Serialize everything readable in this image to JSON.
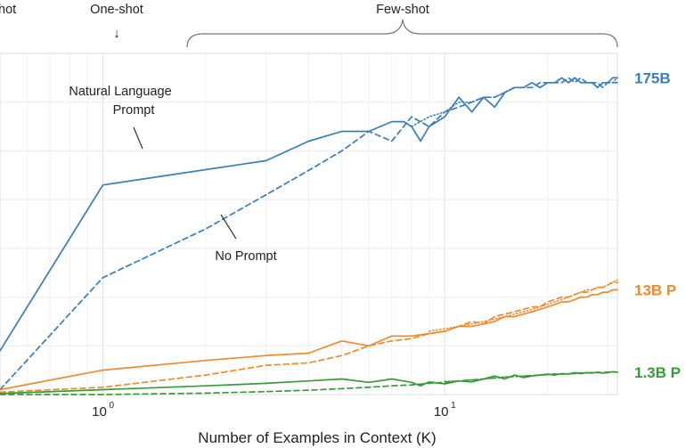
{
  "chart_data": {
    "type": "line",
    "title": "",
    "xlabel": "Number of Examples in Context  (K)",
    "ylabel": "",
    "xscale": "log",
    "xlim": [
      0.5,
      32
    ],
    "ylim": [
      0,
      70
    ],
    "grid": true,
    "regions": [
      {
        "name": "zero-shot",
        "label": "hot"
      },
      {
        "name": "one-shot",
        "label": "One-shot",
        "marker": "↓"
      },
      {
        "name": "few-shot",
        "label": "Few-shot"
      }
    ],
    "x_ticks": [
      {
        "value": 1,
        "base": "10",
        "exp": "0"
      },
      {
        "value": 10,
        "base": "10",
        "exp": "1"
      }
    ],
    "annotations": [
      {
        "name": "natural-language-prompt",
        "lines": [
          "Natural Language",
          "Prompt"
        ]
      },
      {
        "name": "no-prompt",
        "lines": [
          "No Prompt"
        ]
      }
    ],
    "series": [
      {
        "name": "175B Prompt",
        "label": "175B",
        "model": "175B",
        "style": "solid",
        "color": "#3a7db8",
        "x": [
          0.5,
          1,
          3,
          4,
          5,
          6,
          7,
          7.6,
          8,
          8.5,
          9,
          10,
          11,
          12,
          13,
          14,
          15,
          16,
          17,
          18,
          19,
          20,
          21,
          22,
          23,
          24,
          25,
          26,
          27,
          28,
          29,
          30,
          31,
          32
        ],
        "y": [
          9,
          43,
          48,
          52,
          54,
          54,
          56,
          56,
          55,
          52,
          55,
          57,
          61,
          58,
          61,
          59,
          62,
          63,
          63,
          64,
          63,
          64,
          64,
          65,
          64,
          65,
          64,
          64,
          64,
          63,
          64,
          64,
          65,
          65
        ]
      },
      {
        "name": "175B No Prompt",
        "model": "175B",
        "style": "dashed",
        "color": "#3a7db8",
        "x": [
          0.5,
          1,
          2,
          3,
          4,
          5,
          6,
          7,
          8,
          9,
          10,
          11,
          12,
          13,
          14,
          15,
          16,
          17,
          18,
          19,
          20,
          21,
          22,
          23,
          24,
          25,
          26,
          27,
          28,
          29,
          30,
          31,
          32
        ],
        "y": [
          1,
          24,
          34,
          41,
          46,
          50,
          54,
          52,
          57,
          55,
          58,
          59,
          60,
          61,
          61,
          62,
          63,
          63,
          63,
          64,
          64,
          64,
          64,
          65,
          64,
          65,
          64,
          64,
          64,
          63,
          64,
          64,
          64
        ]
      },
      {
        "name": "175B No Prompt (dotted)",
        "model": "175B",
        "style": "dotted",
        "color": "#3a7db8",
        "x": [
          8,
          9,
          10,
          11,
          12,
          13,
          14,
          15,
          16,
          17,
          18,
          19,
          20,
          21,
          22,
          23,
          24,
          25,
          26,
          27,
          28,
          29,
          30,
          31,
          32
        ],
        "y": [
          55,
          57,
          58,
          60,
          60,
          61,
          61,
          62,
          63,
          63,
          64,
          63,
          64,
          64,
          65,
          64,
          65,
          64,
          64,
          64,
          63,
          64,
          64,
          64,
          65
        ]
      },
      {
        "name": "13B Prompt",
        "label": "13B P",
        "model": "13B",
        "style": "solid",
        "color": "#ee8a2e",
        "x": [
          0.5,
          1,
          2,
          3,
          4,
          5,
          6,
          7,
          8,
          9,
          10,
          11,
          12,
          13,
          14,
          15,
          16,
          17,
          18,
          19,
          20,
          21,
          22,
          23,
          24,
          25,
          26,
          27,
          28,
          29,
          30,
          31,
          32
        ],
        "y": [
          1,
          5,
          7,
          8,
          8.5,
          11,
          10,
          12,
          12,
          12.5,
          13,
          14,
          14,
          14.5,
          15,
          16,
          16,
          16.5,
          17,
          17.5,
          18,
          18.5,
          19,
          19,
          19.5,
          20,
          20,
          20.5,
          20.5,
          21,
          21,
          21.5,
          21.5
        ]
      },
      {
        "name": "13B No Prompt",
        "model": "13B",
        "style": "dashed",
        "color": "#ee8a2e",
        "x": [
          0.5,
          1,
          2,
          3,
          4,
          5,
          6,
          7,
          8,
          9,
          10,
          11,
          12,
          13,
          14,
          15,
          16,
          17,
          18,
          19,
          20,
          21,
          22,
          23,
          24,
          25,
          26,
          27,
          28,
          29,
          30,
          31,
          32
        ],
        "y": [
          0.5,
          1.5,
          4,
          6,
          6.5,
          8,
          10,
          11,
          11.5,
          12.5,
          13,
          14,
          15,
          14.5,
          16,
          16.5,
          17,
          17.5,
          18,
          18,
          19,
          19.5,
          20,
          20,
          20.5,
          21,
          21,
          21.5,
          22,
          22,
          22.5,
          23,
          23
        ]
      },
      {
        "name": "13B No Prompt (dotted)",
        "model": "13B",
        "style": "dotted",
        "color": "#ee8a2e",
        "x": [
          9,
          10,
          11,
          12,
          13,
          14,
          15,
          16,
          17,
          18,
          19,
          20,
          21,
          22,
          23,
          24,
          25,
          26,
          27,
          28,
          29,
          30,
          31,
          32
        ],
        "y": [
          13,
          13.5,
          14,
          14.5,
          15,
          15.5,
          16,
          16.5,
          17,
          17.5,
          18,
          18.5,
          19,
          19.5,
          20,
          20.5,
          21,
          21.5,
          21.5,
          22,
          22,
          22.5,
          23,
          23.5
        ]
      },
      {
        "name": "1.3B Prompt",
        "label": "1.3B P",
        "model": "1.3B",
        "style": "solid",
        "color": "#3a9a3a",
        "x": [
          0.5,
          1,
          2,
          3,
          4,
          5,
          6,
          7,
          8,
          8.5,
          9,
          10,
          11,
          12,
          13,
          14,
          15,
          16,
          17,
          18,
          19,
          20,
          21,
          22,
          23,
          24,
          25,
          26,
          27,
          28,
          29,
          30,
          31,
          32
        ],
        "y": [
          0.2,
          1,
          1.8,
          2.3,
          2.8,
          3.2,
          2.5,
          3.2,
          2.5,
          1.8,
          2.6,
          2.2,
          2.8,
          2.6,
          3.2,
          3.8,
          3.2,
          4,
          3.5,
          3.8,
          4,
          4.2,
          4,
          4.3,
          4.2,
          4.5,
          4.3,
          4.5,
          4.4,
          4.6,
          4.4,
          4.5,
          4.7,
          4.6
        ]
      },
      {
        "name": "1.3B No Prompt",
        "model": "1.3B",
        "style": "dashed",
        "color": "#3a9a3a",
        "x": [
          0.5,
          1,
          2,
          3,
          4,
          5,
          6,
          7,
          8,
          9,
          10,
          11,
          12,
          13,
          14,
          15,
          16,
          17,
          18,
          19,
          20,
          21,
          22,
          23,
          24,
          25,
          26,
          27,
          28,
          29,
          30,
          31,
          32
        ],
        "y": [
          0,
          0,
          0.3,
          0.6,
          0.9,
          1.2,
          1.5,
          1.8,
          2,
          2.3,
          2.5,
          2.8,
          3,
          3.2,
          3.4,
          3.6,
          3.7,
          3.8,
          3.9,
          4,
          4.1,
          4.2,
          4.2,
          4.3,
          4.3,
          4.4,
          4.4,
          4.5,
          4.5,
          4.5,
          4.6,
          4.6,
          4.6
        ]
      },
      {
        "name": "1.3B No Prompt (dotted)",
        "model": "1.3B",
        "style": "dotted",
        "color": "#3a9a3a",
        "x": [
          10,
          11,
          12,
          13,
          14,
          15,
          16,
          17,
          18,
          19,
          20,
          21,
          22,
          23,
          24,
          25,
          26,
          27,
          28,
          29,
          30,
          31,
          32
        ],
        "y": [
          2.7,
          2.8,
          3,
          3.2,
          3.4,
          3.6,
          3.7,
          3.8,
          3.9,
          4,
          4.1,
          4.2,
          4.2,
          4.3,
          4.3,
          4.4,
          4.4,
          4.5,
          4.5,
          4.5,
          4.6,
          4.6,
          4.6
        ]
      }
    ]
  }
}
